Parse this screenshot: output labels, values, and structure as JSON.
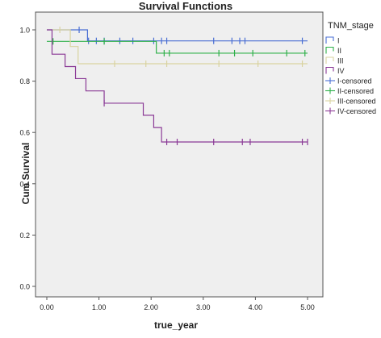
{
  "chart_data": {
    "type": "line",
    "step": true,
    "title": "Survival Functions",
    "xlabel": "true_year",
    "ylabel": "Cum Survival",
    "xlim": [
      0,
      5
    ],
    "ylim": [
      0,
      1
    ],
    "xticks": [
      "0.00",
      "1.00",
      "2.00",
      "3.00",
      "4.00",
      "5.00"
    ],
    "yticks": [
      "0.0",
      "0.2",
      "0.4",
      "0.6",
      "0.8",
      "1.0"
    ],
    "grid": false,
    "plot_background": "#efefef",
    "legend": {
      "title": "TNM_stage",
      "placement": "right",
      "entries": [
        "I",
        "II",
        "III",
        "IV",
        "I-censored",
        "II-censored",
        "III-censored",
        "IV-censored"
      ]
    },
    "series": [
      {
        "name": "I",
        "color": "#4a6fd4",
        "x": [
          0,
          0.78,
          5.0
        ],
        "y": [
          1.0,
          0.957,
          0.957
        ],
        "censored_x": [
          0.62,
          0.8,
          0.95,
          1.1,
          1.4,
          1.65,
          2.05,
          2.2,
          2.3,
          3.2,
          3.55,
          3.7,
          3.8,
          4.9
        ]
      },
      {
        "name": "II",
        "color": "#2fb04a",
        "x": [
          0,
          2.1,
          5.0
        ],
        "y": [
          0.955,
          0.909,
          0.909
        ],
        "censored_x": [
          0.12,
          1.1,
          2.25,
          2.35,
          3.3,
          3.6,
          3.95,
          4.6,
          4.95
        ]
      },
      {
        "name": "III",
        "color": "#d9d3a0",
        "x": [
          0,
          0.45,
          0.6,
          5.0
        ],
        "y": [
          1.0,
          0.935,
          0.868,
          0.868
        ],
        "censored_x": [
          0.25,
          1.3,
          1.9,
          2.3,
          3.3,
          4.05,
          4.9
        ]
      },
      {
        "name": "IV",
        "color": "#8b3a96",
        "x": [
          0,
          0.1,
          0.35,
          0.55,
          0.75,
          1.1,
          1.85,
          2.05,
          2.2,
          5.0
        ],
        "y": [
          1.0,
          0.905,
          0.857,
          0.81,
          0.762,
          0.714,
          0.667,
          0.619,
          0.563,
          0.563
        ],
        "censored_x": [
          1.1,
          2.3,
          2.5,
          3.2,
          3.75,
          3.9,
          4.9,
          5.0
        ]
      }
    ]
  }
}
